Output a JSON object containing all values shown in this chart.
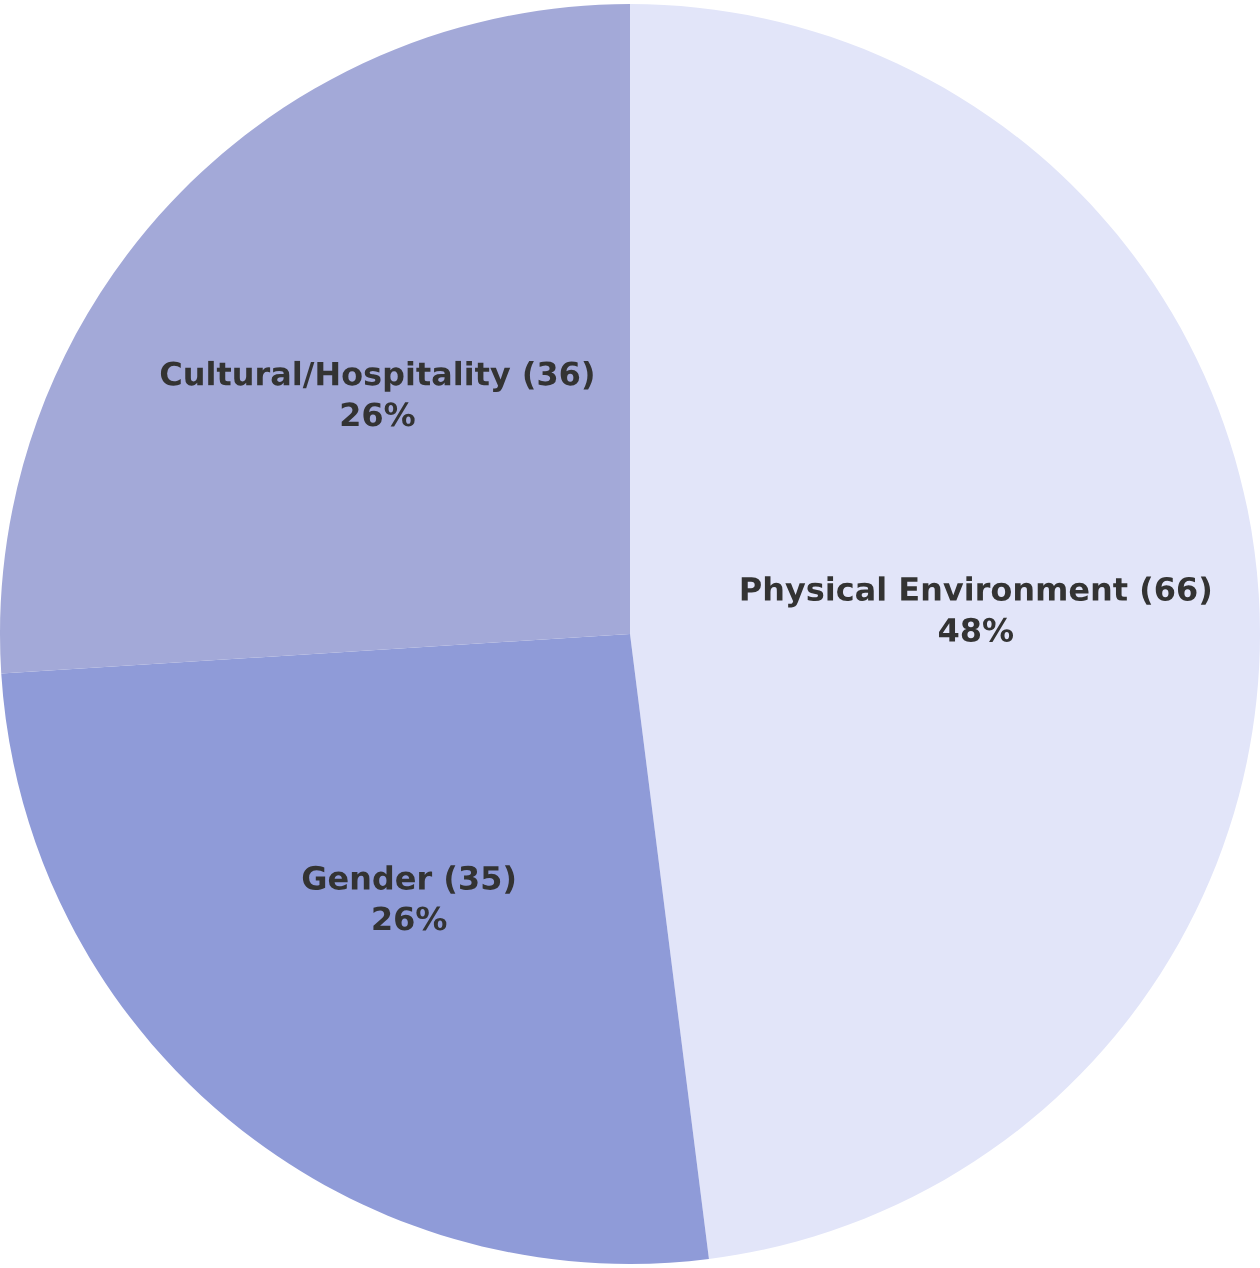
{
  "chart_data": {
    "type": "pie",
    "categories": [
      "Physical Environment (66)",
      "Gender (35)",
      "Cultural/Hospitality (36)"
    ],
    "values": [
      48,
      26,
      26
    ],
    "value_labels": [
      "48%",
      "26%",
      "26%"
    ],
    "colors": [
      "#e2e5f9",
      "#8f9bd8",
      "#a3a9d8"
    ],
    "legend": false
  }
}
